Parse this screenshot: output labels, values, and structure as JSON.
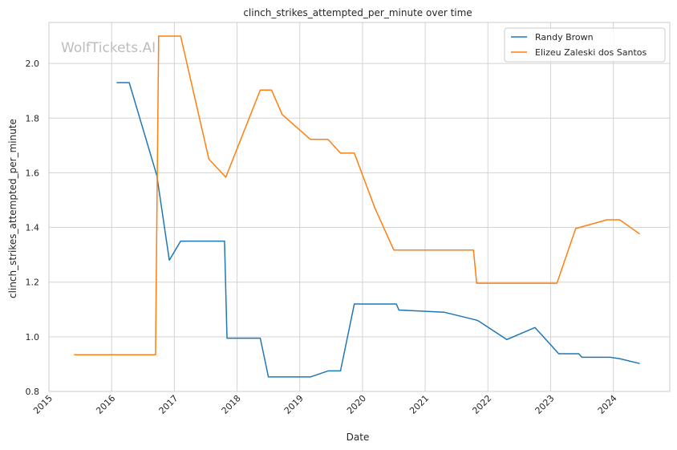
{
  "chart_data": {
    "type": "line",
    "title": "clinch_strikes_attempted_per_minute over time",
    "xlabel": "Date",
    "ylabel": "clinch_strikes_attempted_per_minute",
    "watermark": "WolfTickets.AI",
    "xlim": [
      2015.0,
      2024.9
    ],
    "ylim": [
      0.8,
      2.15
    ],
    "x_ticks": [
      2015,
      2016,
      2017,
      2018,
      2019,
      2020,
      2021,
      2022,
      2023,
      2024
    ],
    "x_tick_labels": [
      "2015",
      "2016",
      "2017",
      "2018",
      "2019",
      "2020",
      "2021",
      "2022",
      "2023",
      "2024"
    ],
    "y_ticks": [
      0.8,
      1.0,
      1.2,
      1.4,
      1.6,
      1.8,
      2.0
    ],
    "y_tick_labels": [
      "0.8",
      "1.0",
      "1.2",
      "1.4",
      "1.6",
      "1.8",
      "2.0"
    ],
    "grid": true,
    "legend_position": "top-right",
    "series": [
      {
        "name": "Randy Brown",
        "color": "#1f77b4",
        "x": [
          2016.08,
          2016.28,
          2016.72,
          2016.92,
          2017.1,
          2017.8,
          2017.84,
          2018.37,
          2018.5,
          2019.17,
          2019.45,
          2019.65,
          2019.87,
          2020.54,
          2020.58,
          2021.3,
          2021.8,
          2021.85,
          2022.3,
          2022.75,
          2023.13,
          2023.45,
          2023.5,
          2023.95,
          2024.1,
          2024.42
        ],
        "y": [
          1.93,
          1.93,
          1.59,
          1.28,
          1.35,
          1.35,
          0.995,
          0.995,
          0.853,
          0.853,
          0.875,
          0.875,
          1.12,
          1.12,
          1.098,
          1.09,
          1.062,
          1.058,
          0.99,
          1.034,
          0.938,
          0.938,
          0.925,
          0.925,
          0.92,
          0.902
        ]
      },
      {
        "name": "Elizeu Zaleski dos Santos",
        "color": "#ff7f0e",
        "x": [
          2015.4,
          2016.7,
          2016.75,
          2017.1,
          2017.55,
          2017.82,
          2018.37,
          2018.55,
          2018.72,
          2019.17,
          2019.45,
          2019.65,
          2019.87,
          2020.2,
          2020.5,
          2021.35,
          2021.77,
          2021.82,
          2022.35,
          2023.1,
          2023.4,
          2023.9,
          2024.1,
          2024.42
        ],
        "y": [
          0.934,
          0.934,
          2.1,
          2.1,
          1.65,
          1.584,
          1.903,
          1.903,
          1.813,
          1.722,
          1.722,
          1.672,
          1.672,
          1.47,
          1.317,
          1.317,
          1.317,
          1.196,
          1.196,
          1.196,
          1.396,
          1.428,
          1.428,
          1.376
        ]
      }
    ]
  }
}
